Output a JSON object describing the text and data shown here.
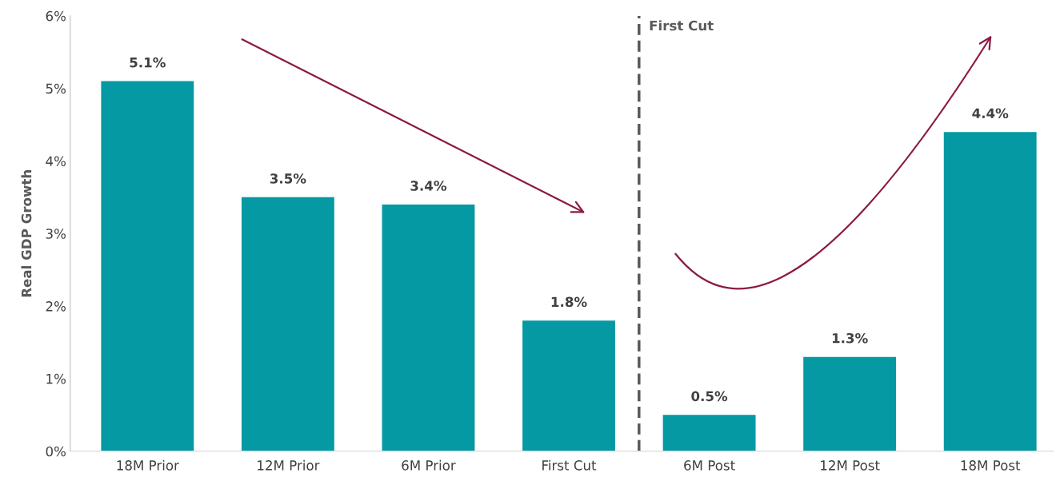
{
  "chart_data": {
    "type": "bar",
    "ylabel": "Real GDP Growth",
    "categories": [
      "18M Prior",
      "12M Prior",
      "6M Prior",
      "First Cut",
      "6M Post",
      "12M Post",
      "18M Post"
    ],
    "values": [
      5.1,
      3.5,
      3.4,
      1.8,
      0.5,
      1.3,
      4.4
    ],
    "value_labels": [
      "5.1%",
      "3.5%",
      "3.4%",
      "1.8%",
      "0.5%",
      "1.3%",
      "4.4%"
    ],
    "color": "#0599a3",
    "ylim": [
      0,
      6
    ],
    "yticks": [
      {
        "value": 0,
        "label": "0%"
      },
      {
        "value": 1,
        "label": "1%"
      },
      {
        "value": 2,
        "label": "2%"
      },
      {
        "value": 3,
        "label": "3%"
      },
      {
        "value": 4,
        "label": "4%"
      },
      {
        "value": 5,
        "label": "5%"
      },
      {
        "value": 6,
        "label": "6%"
      }
    ],
    "annotations": [
      "First Cut"
    ],
    "grid": false
  }
}
